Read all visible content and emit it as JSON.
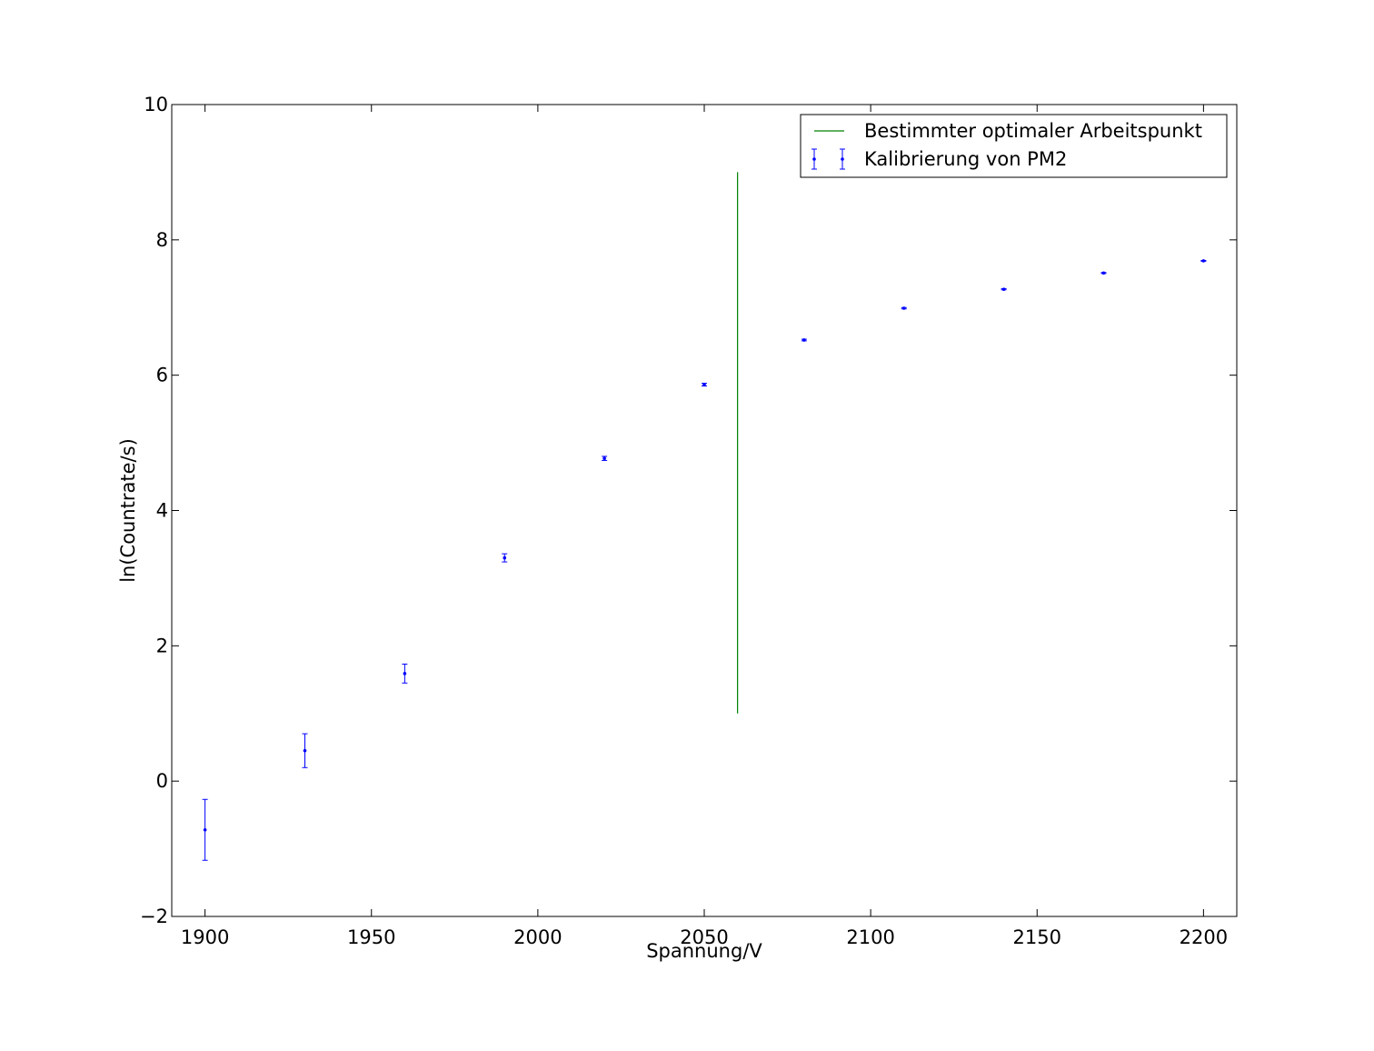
{
  "chart_data": {
    "type": "scatter",
    "title": "",
    "xlabel": "Spannung/V",
    "ylabel": "ln(Countrate/s)",
    "xlim": [
      1890,
      2210
    ],
    "ylim": [
      -2,
      10
    ],
    "xticks": [
      1900,
      1950,
      2000,
      2050,
      2100,
      2150,
      2200
    ],
    "yticks": [
      -2,
      0,
      2,
      4,
      6,
      8,
      10
    ],
    "xtick_labels": [
      "1900",
      "1950",
      "2000",
      "2050",
      "2100",
      "2150",
      "2200"
    ],
    "ytick_labels": [
      "−2",
      "0",
      "2",
      "4",
      "6",
      "8",
      "10"
    ],
    "grid": false,
    "legend_position": "top-right",
    "series": [
      {
        "name": "Kalibrierung von PM2",
        "kind": "errorbar",
        "color": "#0000ff",
        "x": [
          1900,
          1930,
          1960,
          1990,
          2020,
          2050,
          2080,
          2110,
          2140,
          2170,
          2200
        ],
        "y": [
          -0.72,
          0.45,
          1.59,
          3.3,
          4.77,
          5.86,
          6.52,
          6.99,
          7.27,
          7.51,
          7.69
        ],
        "yerr": [
          0.45,
          0.25,
          0.14,
          0.06,
          0.03,
          0.02,
          0.012,
          0.01,
          0.008,
          0.007,
          0.006
        ]
      },
      {
        "name": "Bestimmter optimaler Arbeitspunkt",
        "kind": "vline",
        "color": "#008000",
        "x": 2060,
        "y_range": [
          1,
          9
        ]
      }
    ]
  }
}
